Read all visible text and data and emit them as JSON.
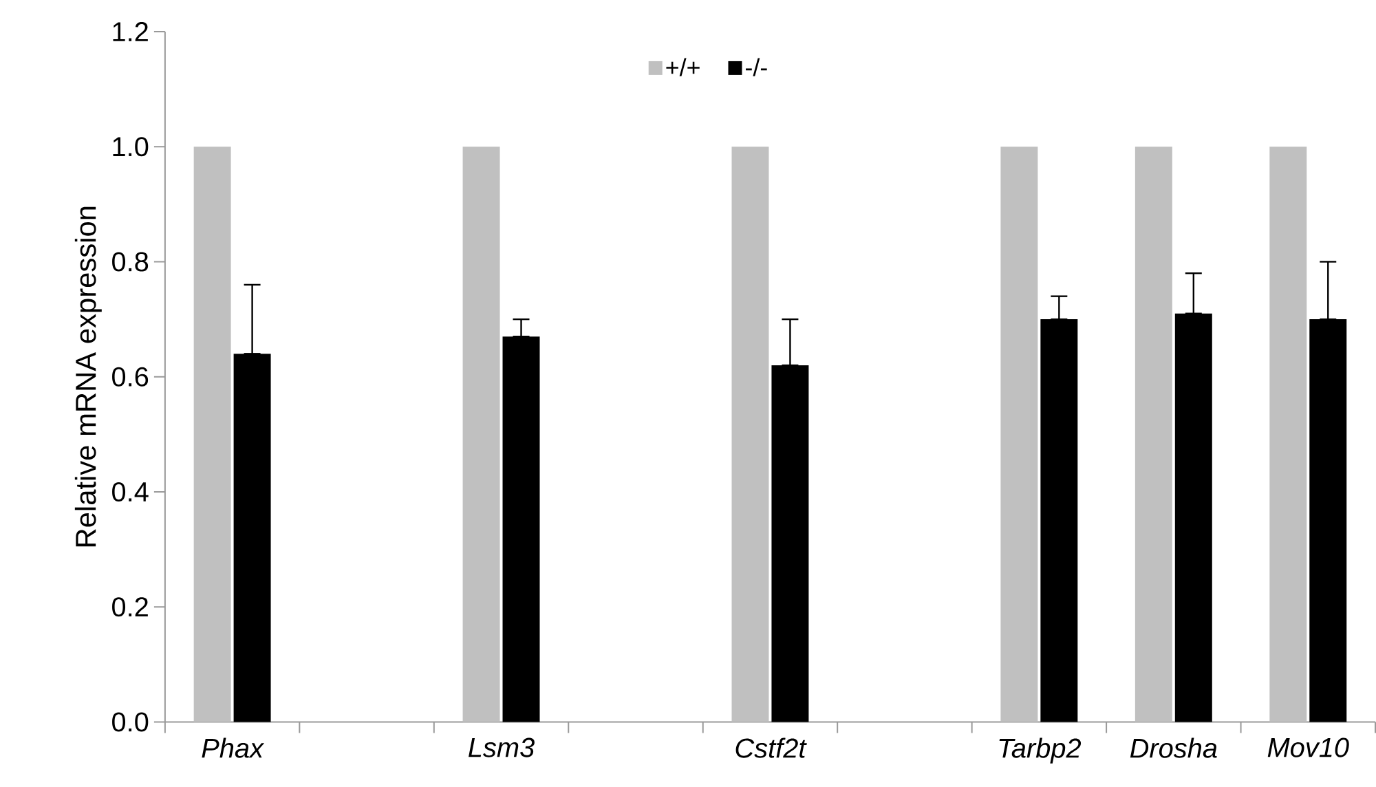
{
  "chart_data": {
    "type": "bar",
    "ylabel": "Relative mRNA expression",
    "categories": [
      "Phax",
      null,
      "Lsm3",
      null,
      "Cstf2t",
      null,
      "Tarbp2",
      "Drosha",
      "Mov10"
    ],
    "series": [
      {
        "name": "+/+",
        "color": "#c0c0c0",
        "values": [
          1.0,
          null,
          1.0,
          null,
          1.0,
          null,
          1.0,
          1.0,
          1.0
        ]
      },
      {
        "name": "-/-",
        "color": "#000000",
        "values": [
          0.64,
          null,
          0.67,
          null,
          0.62,
          null,
          0.7,
          0.71,
          0.7
        ],
        "errors": [
          [
            0.64,
            0.76
          ],
          null,
          [
            0.67,
            0.7
          ],
          null,
          [
            0.62,
            0.7
          ],
          null,
          [
            0.7,
            0.74
          ],
          [
            0.71,
            0.78
          ],
          [
            0.7,
            0.8
          ]
        ]
      }
    ],
    "ylim": [
      0,
      1.2
    ],
    "yticks": [
      {
        "value": 0,
        "label": "0.0"
      },
      {
        "value": 0.2,
        "label": "0.2"
      },
      {
        "value": 0.4,
        "label": "0.4"
      },
      {
        "value": 0.6,
        "label": "0.6"
      },
      {
        "value": 0.8,
        "label": "0.8"
      },
      {
        "value": 1.0,
        "label": "1.0"
      },
      {
        "value": 1.2,
        "label": "1.2"
      }
    ],
    "legend": "top"
  }
}
